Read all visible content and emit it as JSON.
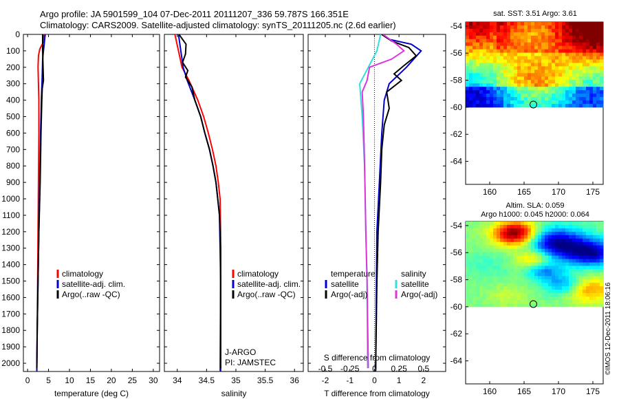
{
  "header": {
    "title_line1": "Argo profile: JA 5901599_104 07-Dec-2011 20111207_336 59.787S 166.351E",
    "title_line2": "Climatology: CARS2009. Satellite-adjusted climatology: synTS_20111205.nc (2.6d earlier)"
  },
  "watermark": "©IMOS 12-Dec-2011 18:06:16",
  "colors": {
    "climatology": "#ff0000",
    "satellite": "#0000cc",
    "argo": "#000000",
    "sal_satellite": "#33dddd",
    "sal_argo": "#dd33dd"
  },
  "chart_data": [
    {
      "type": "line",
      "id": "temperature",
      "xlabel": "temperature (deg C)",
      "ylabel": "",
      "xlim": [
        -1,
        31.5
      ],
      "ylim": [
        2050,
        0
      ],
      "xticks": [
        0,
        5,
        10,
        15,
        20,
        25,
        30
      ],
      "yticks": [
        0,
        100,
        200,
        300,
        400,
        500,
        600,
        700,
        800,
        900,
        1000,
        1100,
        1200,
        1300,
        1400,
        1500,
        1600,
        1700,
        1800,
        1900,
        2000
      ],
      "legend": [
        "climatology",
        "satellite-adj. clim.",
        "Argo(..raw -QC)"
      ],
      "series": [
        {
          "name": "climatology",
          "color": "#ff0000",
          "points": [
            [
              3.9,
              0
            ],
            [
              3.7,
              50
            ],
            [
              2.9,
              90
            ],
            [
              2.6,
              130
            ],
            [
              2.5,
              200
            ],
            [
              2.6,
              300
            ],
            [
              2.7,
              400
            ],
            [
              2.7,
              600
            ],
            [
              2.6,
              900
            ],
            [
              2.5,
              1200
            ],
            [
              2.4,
              1500
            ],
            [
              2.3,
              1800
            ],
            [
              2.2,
              2050
            ]
          ]
        },
        {
          "name": "satellite-adj. clim.",
          "color": "#0000cc",
          "points": [
            [
              4.2,
              0
            ],
            [
              4.0,
              50
            ],
            [
              3.8,
              100
            ],
            [
              3.6,
              150
            ],
            [
              3.5,
              250
            ],
            [
              3.3,
              400
            ],
            [
              3.1,
              600
            ],
            [
              2.9,
              900
            ],
            [
              2.7,
              1200
            ],
            [
              2.5,
              1500
            ],
            [
              2.3,
              1800
            ],
            [
              2.2,
              2050
            ]
          ]
        },
        {
          "name": "Argo(..raw -QC)",
          "color": "#000000",
          "points": [
            [
              3.6,
              0
            ],
            [
              3.6,
              100
            ],
            [
              3.7,
              200
            ],
            [
              3.8,
              280
            ],
            [
              3.5,
              330
            ],
            [
              3.4,
              400
            ],
            [
              3.2,
              600
            ],
            [
              3.0,
              900
            ],
            [
              2.7,
              1200
            ],
            [
              2.5,
              1500
            ],
            [
              2.3,
              1800
            ],
            [
              2.2,
              2030
            ]
          ]
        }
      ]
    },
    {
      "type": "line",
      "id": "salinity",
      "xlabel": "salinity",
      "ylabel": "",
      "xlim": [
        33.78,
        36.15
      ],
      "ylim": [
        2050,
        0
      ],
      "xticks": [
        34,
        34.5,
        35,
        35.5,
        36
      ],
      "legend": [
        "climatology",
        "satellite-adj. clim.",
        "Argo(..raw -QC)"
      ],
      "annotation": [
        "J-ARGO",
        "PI: JAMSTEC"
      ],
      "series": [
        {
          "name": "climatology",
          "color": "#ff0000",
          "points": [
            [
              33.96,
              0
            ],
            [
              34.02,
              100
            ],
            [
              34.08,
              200
            ],
            [
              34.2,
              280
            ],
            [
              34.35,
              400
            ],
            [
              34.45,
              500
            ],
            [
              34.53,
              600
            ],
            [
              34.6,
              700
            ],
            [
              34.66,
              800
            ],
            [
              34.7,
              900
            ],
            [
              34.73,
              1000
            ],
            [
              34.74,
              1200
            ],
            [
              34.74,
              1500
            ],
            [
              34.73,
              2050
            ]
          ]
        },
        {
          "name": "satellite-adj. clim.",
          "color": "#0000cc",
          "points": [
            [
              34.02,
              0
            ],
            [
              34.06,
              100
            ],
            [
              34.1,
              200
            ],
            [
              34.17,
              280
            ],
            [
              34.3,
              400
            ],
            [
              34.4,
              500
            ],
            [
              34.47,
              600
            ],
            [
              34.55,
              700
            ],
            [
              34.61,
              800
            ],
            [
              34.66,
              900
            ],
            [
              34.69,
              1000
            ],
            [
              34.72,
              1100
            ],
            [
              34.73,
              1300
            ],
            [
              34.74,
              1500
            ],
            [
              34.74,
              2050
            ]
          ]
        },
        {
          "name": "Argo(..raw -QC)",
          "color": "#000000",
          "points": [
            [
              34.03,
              0
            ],
            [
              34.15,
              60
            ],
            [
              34.14,
              120
            ],
            [
              34.09,
              170
            ],
            [
              34.18,
              220
            ],
            [
              34.14,
              260
            ],
            [
              34.25,
              320
            ],
            [
              34.3,
              400
            ],
            [
              34.4,
              500
            ],
            [
              34.47,
              600
            ],
            [
              34.55,
              700
            ],
            [
              34.61,
              800
            ],
            [
              34.66,
              900
            ],
            [
              34.69,
              1000
            ],
            [
              34.72,
              1100
            ],
            [
              34.74,
              1300
            ],
            [
              34.74,
              1500
            ],
            [
              34.74,
              2030
            ]
          ]
        }
      ]
    },
    {
      "type": "line",
      "id": "difference",
      "xlabel": "T difference from climatology",
      "xlabel_top": "S difference from climatology",
      "xlim": [
        -2.7,
        2.9
      ],
      "ylim": [
        2050,
        0
      ],
      "xticks": [
        -2,
        -1,
        0,
        1,
        2
      ],
      "top_ticks": [
        {
          "label": "-0.5",
          "pos": -2
        },
        {
          "label": "-0.25",
          "pos": -1
        },
        {
          "label": "0",
          "pos": 0
        },
        {
          "label": "0.25",
          "pos": 1
        },
        {
          "label": "0.5",
          "pos": 2
        }
      ],
      "legend_temperature": {
        "header": "temperature",
        "items": [
          "satellite",
          "Argo(-adj)"
        ]
      },
      "legend_salinity": {
        "header": "salinity",
        "items": [
          "satellite",
          "Argo(-adj)"
        ]
      },
      "series": [
        {
          "name": "temperature satellite",
          "color": "#0000cc",
          "points": [
            [
              0.3,
              0
            ],
            [
              0.6,
              30
            ],
            [
              1.5,
              60
            ],
            [
              1.9,
              100
            ],
            [
              1.3,
              200
            ],
            [
              0.6,
              300
            ],
            [
              0.4,
              400
            ],
            [
              0.3,
              600
            ],
            [
              0.2,
              900
            ],
            [
              0.1,
              1200
            ],
            [
              0.08,
              1500
            ],
            [
              0.05,
              2050
            ]
          ]
        },
        {
          "name": "temperature Argo(-adj)",
          "color": "#000000",
          "points": [
            [
              0.3,
              0
            ],
            [
              0.7,
              40
            ],
            [
              1.4,
              80
            ],
            [
              1.7,
              130
            ],
            [
              1.2,
              190
            ],
            [
              0.8,
              240
            ],
            [
              1.1,
              280
            ],
            [
              0.5,
              350
            ],
            [
              0.6,
              450
            ],
            [
              0.4,
              550
            ],
            [
              0.3,
              700
            ],
            [
              0.25,
              900
            ],
            [
              0.15,
              1200
            ],
            [
              0.1,
              1500
            ],
            [
              0.05,
              2030
            ]
          ]
        },
        {
          "name": "salinity satellite",
          "color": "#33dddd",
          "points": [
            [
              0.25,
              0
            ],
            [
              0.1,
              100
            ],
            [
              -0.6,
              300
            ],
            [
              -0.5,
              500
            ],
            [
              -0.4,
              800
            ],
            [
              -0.35,
              1200
            ],
            [
              -0.3,
              1500
            ],
            [
              -0.28,
              2030
            ]
          ]
        },
        {
          "name": "salinity Argo(-adj)",
          "color": "#dd33dd",
          "points": [
            [
              0.35,
              0
            ],
            [
              0.9,
              60
            ],
            [
              1.2,
              100
            ],
            [
              0.7,
              150
            ],
            [
              -0.2,
              200
            ],
            [
              -0.3,
              280
            ],
            [
              -0.5,
              350
            ],
            [
              -0.45,
              500
            ],
            [
              -0.4,
              800
            ],
            [
              -0.35,
              1200
            ],
            [
              -0.3,
              1500
            ],
            [
              -0.25,
              2030
            ]
          ]
        }
      ]
    },
    {
      "type": "heatmap",
      "id": "sst_map",
      "title": "sat. SST: 3.51  Argo: 3.61",
      "xlim": [
        156.5,
        176.5
      ],
      "ylim": [
        -65.7,
        -53.7
      ],
      "xticks": [
        160,
        165,
        170,
        175
      ],
      "yticks": [
        -54,
        -56,
        -58,
        -60,
        -62,
        -64
      ],
      "data_lat_min": -60,
      "marker": {
        "lon": 166.35,
        "lat": -59.8
      }
    },
    {
      "type": "heatmap",
      "id": "sla_map",
      "title": "Altim. SLA: 0.059",
      "subtitle": "Argo h1000: 0.045 h2000: 0.064",
      "xlim": [
        156.5,
        176.5
      ],
      "ylim": [
        -65.7,
        -53.7
      ],
      "xticks": [
        160,
        165,
        170,
        175
      ],
      "yticks": [
        -54,
        -56,
        -58,
        -60,
        -62,
        -64
      ],
      "data_lat_min": -60,
      "marker": {
        "lon": 166.35,
        "lat": -59.8
      }
    }
  ]
}
